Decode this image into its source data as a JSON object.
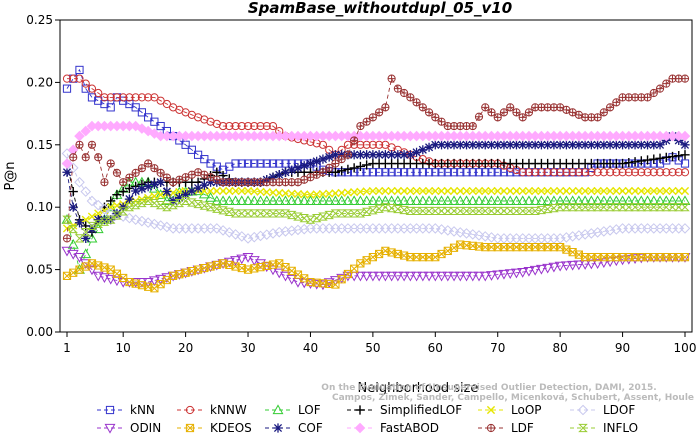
{
  "chart_data": {
    "type": "line",
    "title": "SpamBase_withoutdupl_05_v10",
    "xlabel": "Neighborhood size",
    "ylabel": "P@n",
    "xlim": [
      0,
      100
    ],
    "ylim": [
      0,
      0.25
    ],
    "xticks": [
      1,
      10,
      20,
      30,
      40,
      50,
      60,
      70,
      80,
      90,
      100
    ],
    "yticks": [
      0.0,
      0.05,
      0.1,
      0.15,
      0.2,
      0.25
    ],
    "grid": false,
    "legend_position": "bottom",
    "watermark": "Campos, Zimek, Sander, Campello, Micenková, Schubert, Assent, Houle",
    "watermark_prefix": "On the Evaluation of Unsupervised Outlier Detection, DAMI, 2015.",
    "series": [
      {
        "name": "kNN",
        "color": "#3333cc",
        "marker": "square",
        "dash": "4,3",
        "points": [
          [
            1,
            0.195
          ],
          [
            2,
            0.203
          ],
          [
            3,
            0.21
          ],
          [
            4,
            0.195
          ],
          [
            5,
            0.188
          ],
          [
            8,
            0.18
          ],
          [
            9,
            0.188
          ],
          [
            12,
            0.18
          ],
          [
            14,
            0.172
          ],
          [
            16,
            0.165
          ],
          [
            18,
            0.157
          ],
          [
            20,
            0.15
          ],
          [
            22,
            0.142
          ],
          [
            24,
            0.135
          ],
          [
            26,
            0.13
          ],
          [
            28,
            0.135
          ],
          [
            40,
            0.135
          ],
          [
            42,
            0.13
          ],
          [
            44,
            0.128
          ],
          [
            84,
            0.128
          ],
          [
            86,
            0.135
          ],
          [
            96,
            0.135
          ],
          [
            98,
            0.14
          ],
          [
            100,
            0.135
          ]
        ]
      },
      {
        "name": "kNNW",
        "color": "#cc3333",
        "marker": "circle",
        "dash": "4,3",
        "points": [
          [
            1,
            0.203
          ],
          [
            3,
            0.203
          ],
          [
            5,
            0.195
          ],
          [
            7,
            0.188
          ],
          [
            15,
            0.188
          ],
          [
            18,
            0.18
          ],
          [
            22,
            0.172
          ],
          [
            26,
            0.165
          ],
          [
            34,
            0.165
          ],
          [
            36,
            0.157
          ],
          [
            42,
            0.15
          ],
          [
            44,
            0.142
          ],
          [
            46,
            0.15
          ],
          [
            52,
            0.15
          ],
          [
            56,
            0.142
          ],
          [
            60,
            0.135
          ],
          [
            70,
            0.135
          ],
          [
            74,
            0.128
          ],
          [
            100,
            0.128
          ]
        ]
      },
      {
        "name": "LOF",
        "color": "#33cc33",
        "marker": "triangle-up",
        "dash": "4,3",
        "points": [
          [
            1,
            0.09
          ],
          [
            3,
            0.05
          ],
          [
            5,
            0.075
          ],
          [
            7,
            0.09
          ],
          [
            9,
            0.11
          ],
          [
            11,
            0.12
          ],
          [
            14,
            0.12
          ],
          [
            17,
            0.105
          ],
          [
            19,
            0.112
          ],
          [
            22,
            0.113
          ],
          [
            25,
            0.105
          ],
          [
            30,
            0.105
          ],
          [
            40,
            0.105
          ],
          [
            45,
            0.105
          ],
          [
            55,
            0.105
          ],
          [
            60,
            0.105
          ],
          [
            70,
            0.105
          ],
          [
            80,
            0.105
          ],
          [
            90,
            0.105
          ],
          [
            100,
            0.105
          ]
        ]
      },
      {
        "name": "SimplifiedLOF",
        "color": "#000000",
        "marker": "plus",
        "dash": "4,3",
        "points": [
          [
            1,
            0.135
          ],
          [
            3,
            0.09
          ],
          [
            5,
            0.08
          ],
          [
            7,
            0.1
          ],
          [
            9,
            0.11
          ],
          [
            11,
            0.115
          ],
          [
            14,
            0.12
          ],
          [
            18,
            0.12
          ],
          [
            22,
            0.12
          ],
          [
            25,
            0.128
          ],
          [
            28,
            0.12
          ],
          [
            32,
            0.12
          ],
          [
            36,
            0.128
          ],
          [
            40,
            0.128
          ],
          [
            44,
            0.128
          ],
          [
            50,
            0.135
          ],
          [
            60,
            0.135
          ],
          [
            70,
            0.135
          ],
          [
            80,
            0.135
          ],
          [
            90,
            0.135
          ],
          [
            100,
            0.142
          ]
        ]
      },
      {
        "name": "LoOP",
        "color": "#e6e600",
        "marker": "x",
        "dash": "4,3",
        "points": [
          [
            1,
            0.083
          ],
          [
            4,
            0.09
          ],
          [
            8,
            0.1
          ],
          [
            12,
            0.105
          ],
          [
            16,
            0.11
          ],
          [
            20,
            0.113
          ],
          [
            25,
            0.113
          ],
          [
            30,
            0.113
          ],
          [
            40,
            0.11
          ],
          [
            50,
            0.113
          ],
          [
            60,
            0.113
          ],
          [
            70,
            0.113
          ],
          [
            80,
            0.113
          ],
          [
            90,
            0.113
          ],
          [
            100,
            0.113
          ]
        ]
      },
      {
        "name": "LDOF",
        "color": "#c8c8ee",
        "marker": "diamond",
        "dash": "4,3",
        "points": [
          [
            1,
            0.143
          ],
          [
            3,
            0.12
          ],
          [
            5,
            0.105
          ],
          [
            8,
            0.095
          ],
          [
            12,
            0.09
          ],
          [
            18,
            0.083
          ],
          [
            25,
            0.083
          ],
          [
            30,
            0.075
          ],
          [
            35,
            0.08
          ],
          [
            40,
            0.083
          ],
          [
            45,
            0.083
          ],
          [
            50,
            0.083
          ],
          [
            55,
            0.083
          ],
          [
            60,
            0.083
          ],
          [
            70,
            0.075
          ],
          [
            80,
            0.075
          ],
          [
            90,
            0.083
          ],
          [
            100,
            0.083
          ]
        ]
      },
      {
        "name": "ODIN",
        "color": "#9933cc",
        "marker": "triangle-down",
        "dash": "4,3",
        "points": [
          [
            1,
            0.065
          ],
          [
            3,
            0.06
          ],
          [
            6,
            0.045
          ],
          [
            10,
            0.04
          ],
          [
            14,
            0.04
          ],
          [
            18,
            0.045
          ],
          [
            22,
            0.05
          ],
          [
            26,
            0.055
          ],
          [
            30,
            0.06
          ],
          [
            34,
            0.05
          ],
          [
            38,
            0.04
          ],
          [
            42,
            0.038
          ],
          [
            46,
            0.045
          ],
          [
            50,
            0.045
          ],
          [
            56,
            0.045
          ],
          [
            62,
            0.045
          ],
          [
            68,
            0.045
          ],
          [
            74,
            0.048
          ],
          [
            80,
            0.053
          ],
          [
            86,
            0.055
          ],
          [
            90,
            0.058
          ],
          [
            94,
            0.06
          ],
          [
            100,
            0.06
          ]
        ]
      },
      {
        "name": "KDEOS",
        "color": "#e6b000",
        "marker": "square-x",
        "dash": "4,3",
        "points": [
          [
            1,
            0.045
          ],
          [
            3,
            0.05
          ],
          [
            5,
            0.055
          ],
          [
            8,
            0.05
          ],
          [
            11,
            0.04
          ],
          [
            15,
            0.035
          ],
          [
            18,
            0.045
          ],
          [
            22,
            0.05
          ],
          [
            26,
            0.055
          ],
          [
            30,
            0.05
          ],
          [
            35,
            0.055
          ],
          [
            40,
            0.04
          ],
          [
            44,
            0.038
          ],
          [
            48,
            0.055
          ],
          [
            52,
            0.065
          ],
          [
            56,
            0.06
          ],
          [
            60,
            0.06
          ],
          [
            64,
            0.07
          ],
          [
            68,
            0.068
          ],
          [
            72,
            0.068
          ],
          [
            76,
            0.068
          ],
          [
            80,
            0.068
          ],
          [
            84,
            0.06
          ],
          [
            88,
            0.06
          ],
          [
            92,
            0.06
          ],
          [
            96,
            0.06
          ],
          [
            100,
            0.06
          ]
        ]
      },
      {
        "name": "COF",
        "color": "#1a1a80",
        "marker": "asterisk",
        "dash": "4,3",
        "points": [
          [
            1,
            0.128
          ],
          [
            2,
            0.1
          ],
          [
            4,
            0.075
          ],
          [
            6,
            0.09
          ],
          [
            8,
            0.09
          ],
          [
            10,
            0.1
          ],
          [
            12,
            0.113
          ],
          [
            16,
            0.12
          ],
          [
            18,
            0.105
          ],
          [
            21,
            0.113
          ],
          [
            24,
            0.12
          ],
          [
            28,
            0.12
          ],
          [
            32,
            0.12
          ],
          [
            36,
            0.128
          ],
          [
            40,
            0.135
          ],
          [
            44,
            0.142
          ],
          [
            48,
            0.142
          ],
          [
            52,
            0.142
          ],
          [
            56,
            0.142
          ],
          [
            60,
            0.15
          ],
          [
            70,
            0.15
          ],
          [
            80,
            0.15
          ],
          [
            90,
            0.15
          ],
          [
            96,
            0.15
          ],
          [
            98,
            0.157
          ],
          [
            100,
            0.15
          ]
        ]
      },
      {
        "name": "FastABOD",
        "color": "#ffaaff",
        "marker": "diamond-filled",
        "dash": "4,3",
        "points": [
          [
            1,
            0.135
          ],
          [
            3,
            0.157
          ],
          [
            5,
            0.165
          ],
          [
            8,
            0.165
          ],
          [
            12,
            0.165
          ],
          [
            16,
            0.157
          ],
          [
            20,
            0.157
          ],
          [
            25,
            0.157
          ],
          [
            30,
            0.157
          ],
          [
            40,
            0.157
          ],
          [
            50,
            0.157
          ],
          [
            60,
            0.157
          ],
          [
            70,
            0.157
          ],
          [
            80,
            0.157
          ],
          [
            90,
            0.157
          ],
          [
            100,
            0.157
          ]
        ]
      },
      {
        "name": "LDF",
        "color": "#993333",
        "marker": "circle-plus",
        "dash": "4,3",
        "points": [
          [
            1,
            0.075
          ],
          [
            2,
            0.14
          ],
          [
            3,
            0.15
          ],
          [
            4,
            0.14
          ],
          [
            5,
            0.15
          ],
          [
            6,
            0.14
          ],
          [
            7,
            0.12
          ],
          [
            8,
            0.135
          ],
          [
            10,
            0.12
          ],
          [
            14,
            0.135
          ],
          [
            18,
            0.12
          ],
          [
            22,
            0.128
          ],
          [
            26,
            0.12
          ],
          [
            30,
            0.12
          ],
          [
            34,
            0.12
          ],
          [
            38,
            0.12
          ],
          [
            42,
            0.128
          ],
          [
            46,
            0.142
          ],
          [
            48,
            0.165
          ],
          [
            50,
            0.172
          ],
          [
            52,
            0.18
          ],
          [
            53,
            0.203
          ],
          [
            54,
            0.195
          ],
          [
            56,
            0.188
          ],
          [
            58,
            0.18
          ],
          [
            60,
            0.172
          ],
          [
            62,
            0.165
          ],
          [
            66,
            0.165
          ],
          [
            68,
            0.18
          ],
          [
            70,
            0.172
          ],
          [
            72,
            0.18
          ],
          [
            74,
            0.172
          ],
          [
            76,
            0.18
          ],
          [
            80,
            0.18
          ],
          [
            84,
            0.172
          ],
          [
            86,
            0.172
          ],
          [
            88,
            0.18
          ],
          [
            90,
            0.188
          ],
          [
            94,
            0.188
          ],
          [
            96,
            0.195
          ],
          [
            98,
            0.203
          ],
          [
            100,
            0.203
          ]
        ]
      },
      {
        "name": "INFLO",
        "color": "#99cc33",
        "marker": "hourglass",
        "dash": "4,3",
        "points": [
          [
            1,
            0.09
          ],
          [
            3,
            0.075
          ],
          [
            5,
            0.085
          ],
          [
            8,
            0.09
          ],
          [
            11,
            0.1
          ],
          [
            14,
            0.105
          ],
          [
            17,
            0.1
          ],
          [
            20,
            0.105
          ],
          [
            24,
            0.1
          ],
          [
            28,
            0.095
          ],
          [
            32,
            0.095
          ],
          [
            36,
            0.095
          ],
          [
            40,
            0.09
          ],
          [
            44,
            0.095
          ],
          [
            48,
            0.095
          ],
          [
            52,
            0.1
          ],
          [
            56,
            0.097
          ],
          [
            60,
            0.097
          ],
          [
            66,
            0.097
          ],
          [
            70,
            0.097
          ],
          [
            76,
            0.097
          ],
          [
            80,
            0.1
          ],
          [
            86,
            0.1
          ],
          [
            90,
            0.1
          ],
          [
            94,
            0.1
          ],
          [
            100,
            0.1
          ]
        ]
      }
    ]
  }
}
